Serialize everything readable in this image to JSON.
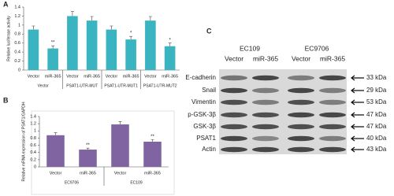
{
  "chart_data": [
    {
      "type": "bar",
      "panel": "A",
      "ylabel": "Relative luciferase activity",
      "categories": [
        "Vector",
        "miR-365",
        "Vector",
        "miR-365",
        "Vector",
        "miR-365",
        "Vector",
        "miR-365"
      ],
      "group_labels": [
        "Vector",
        "PSAT1-UTR-MUT",
        "PSAT1-UTR-MUT1",
        "PSAT1-UTR-MUT2"
      ],
      "values": [
        0.9,
        0.48,
        1.2,
        1.1,
        0.9,
        0.68,
        1.1,
        0.53
      ],
      "errors": [
        0.08,
        0.06,
        0.1,
        0.09,
        0.08,
        0.07,
        0.09,
        0.07
      ],
      "annotations": [
        null,
        "**",
        null,
        null,
        null,
        "*",
        null,
        "*"
      ],
      "color": "#3bb4c1",
      "ylim": [
        0,
        1.4
      ],
      "yticks": [
        0,
        0.2,
        0.4,
        0.6,
        0.8,
        1,
        1.2,
        1.4
      ]
    },
    {
      "type": "bar",
      "panel": "B",
      "ylabel": "Relative mRNA expression of PSAT1/GAPDH",
      "categories": [
        "Vector",
        "miR-365",
        "Vector",
        "miR-365"
      ],
      "group_labels": [
        "EC9706",
        "EC109"
      ],
      "values": [
        0.88,
        0.48,
        1.18,
        0.7
      ],
      "errors": [
        0.07,
        0.04,
        0.08,
        0.06
      ],
      "annotations": [
        null,
        "**",
        null,
        "**"
      ],
      "color": "#8064a2",
      "ylim": [
        0,
        1.4
      ],
      "yticks": [
        0,
        0.2,
        0.4,
        0.6,
        0.8,
        1,
        1.2,
        1.4
      ]
    }
  ],
  "blot": {
    "panel": "C",
    "groups": [
      "EC109",
      "EC9706"
    ],
    "columns": [
      "Vector",
      "miR-365",
      "Vector",
      "miR-365"
    ],
    "rows": [
      {
        "protein": "E-cadherin",
        "size": "33 kDa"
      },
      {
        "protein": "Snail",
        "size": "29 kDa"
      },
      {
        "protein": "Vimentin",
        "size": "53 kDa"
      },
      {
        "protein": "p-GSK-3β",
        "size": "47 kDa"
      },
      {
        "protein": "GSK-3β",
        "size": "47 kDa"
      },
      {
        "protein": "PSAT1",
        "size": "40 kDa"
      },
      {
        "protein": "Actin",
        "size": "43 kDa"
      }
    ]
  }
}
